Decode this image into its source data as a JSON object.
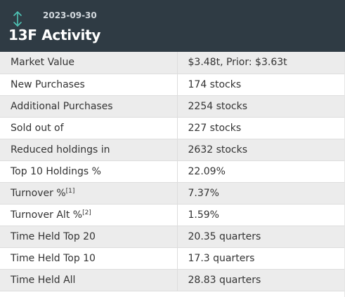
{
  "header": {
    "date": "2023-09-30",
    "title": "13F Activity",
    "icon": "up-down-arrow-icon",
    "icon_color": "#4fc3b5",
    "background": "#2f3b44"
  },
  "rows": [
    {
      "label": "Market Value",
      "sup": "",
      "value": "$3.48t, Prior: $3.63t"
    },
    {
      "label": "New Purchases",
      "sup": "",
      "value": "174 stocks"
    },
    {
      "label": "Additional Purchases",
      "sup": "",
      "value": "2254 stocks"
    },
    {
      "label": "Sold out of",
      "sup": "",
      "value": "227 stocks"
    },
    {
      "label": "Reduced holdings in",
      "sup": "",
      "value": "2632 stocks"
    },
    {
      "label": "Top 10 Holdings %",
      "sup": "",
      "value": "22.09%"
    },
    {
      "label": "Turnover %",
      "sup": "[1]",
      "value": "7.37%"
    },
    {
      "label": "Turnover Alt %",
      "sup": "[2]",
      "value": "1.59%"
    },
    {
      "label": "Time Held Top 20",
      "sup": "",
      "value": "20.35 quarters"
    },
    {
      "label": "Time Held Top 10",
      "sup": "",
      "value": "17.3 quarters"
    },
    {
      "label": "Time Held All",
      "sup": "",
      "value": "28.83 quarters"
    }
  ]
}
